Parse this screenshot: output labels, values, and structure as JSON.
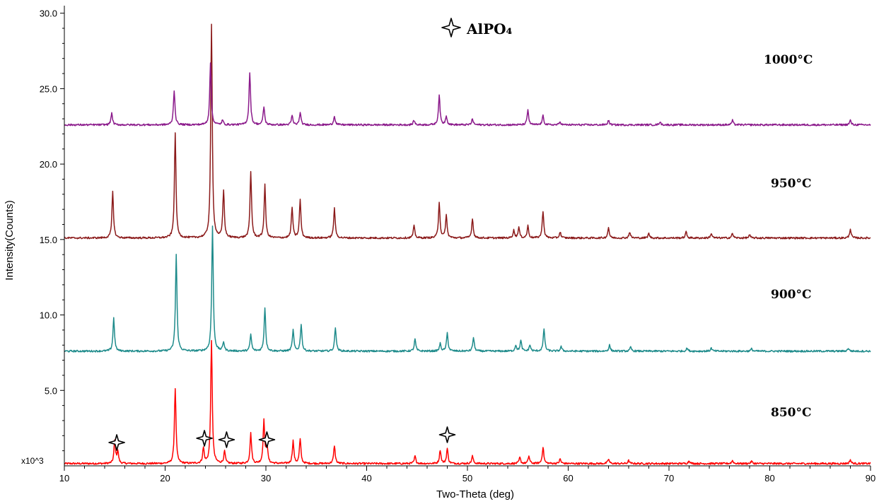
{
  "chart_data": {
    "type": "line",
    "xlabel": "Two-Theta (deg)",
    "ylabel": "Intensity(Counts)",
    "y_multiplier_label": "x10^3",
    "xlim": [
      10,
      90
    ],
    "ylim": [
      0,
      30.5
    ],
    "x_ticks": [
      "10",
      "20",
      "30",
      "40",
      "50",
      "60",
      "70",
      "80",
      "90"
    ],
    "y_ticks": [
      "5.0",
      "10.0",
      "15.0",
      "20.0",
      "25.0",
      "30.0"
    ],
    "legend": {
      "marker": "four-point-star",
      "label": "AlPO₄"
    },
    "series": [
      {
        "name": "850°C",
        "color": "#ff0000",
        "baseline": 0.15,
        "peaks": [
          [
            15.0,
            1.5
          ],
          [
            15.3,
            0.8
          ],
          [
            21.0,
            5.0
          ],
          [
            23.8,
            1.0
          ],
          [
            24.6,
            8.1
          ],
          [
            25.9,
            0.8
          ],
          [
            28.5,
            2.0
          ],
          [
            29.8,
            2.8
          ],
          [
            30.1,
            1.3
          ],
          [
            32.7,
            1.5
          ],
          [
            33.4,
            1.6
          ],
          [
            36.8,
            1.2
          ],
          [
            44.8,
            0.5
          ],
          [
            47.3,
            0.9
          ],
          [
            48.0,
            1.0
          ],
          [
            50.5,
            0.5
          ],
          [
            55.2,
            0.4
          ],
          [
            56.1,
            0.5
          ],
          [
            57.5,
            1.1
          ],
          [
            59.2,
            0.3
          ],
          [
            64.0,
            0.3
          ],
          [
            66.0,
            0.2
          ],
          [
            72.0,
            0.2
          ],
          [
            76.3,
            0.2
          ],
          [
            78.2,
            0.15
          ],
          [
            88.0,
            0.25
          ]
        ],
        "markers_x": [
          15.2,
          23.9,
          26.1,
          30.1,
          48.0
        ]
      },
      {
        "name": "900°C",
        "color": "#1e8b8b",
        "baseline": 7.6,
        "peaks": [
          [
            14.9,
            2.2
          ],
          [
            21.1,
            6.4
          ],
          [
            24.7,
            8.3
          ],
          [
            25.8,
            0.6
          ],
          [
            28.5,
            1.1
          ],
          [
            29.9,
            2.9
          ],
          [
            32.7,
            1.4
          ],
          [
            33.5,
            1.8
          ],
          [
            36.9,
            1.6
          ],
          [
            44.8,
            0.8
          ],
          [
            47.3,
            0.5
          ],
          [
            48.0,
            1.2
          ],
          [
            50.6,
            0.9
          ],
          [
            54.8,
            0.4
          ],
          [
            55.3,
            0.7
          ],
          [
            56.2,
            0.4
          ],
          [
            57.6,
            1.5
          ],
          [
            59.3,
            0.3
          ],
          [
            64.1,
            0.4
          ],
          [
            66.2,
            0.25
          ],
          [
            71.8,
            0.2
          ],
          [
            74.2,
            0.2
          ],
          [
            78.2,
            0.15
          ],
          [
            87.8,
            0.2
          ]
        ],
        "markers_x": []
      },
      {
        "name": "950°C",
        "color": "#8b1a1a",
        "baseline": 15.1,
        "peaks": [
          [
            14.8,
            3.1
          ],
          [
            21.0,
            6.9
          ],
          [
            24.6,
            14.1
          ],
          [
            25.8,
            3.1
          ],
          [
            28.5,
            4.4
          ],
          [
            29.9,
            3.5
          ],
          [
            32.6,
            2.0
          ],
          [
            33.4,
            2.5
          ],
          [
            36.8,
            2.0
          ],
          [
            44.7,
            0.8
          ],
          [
            47.2,
            2.4
          ],
          [
            47.9,
            1.5
          ],
          [
            50.5,
            1.3
          ],
          [
            54.6,
            0.5
          ],
          [
            55.1,
            0.7
          ],
          [
            56.0,
            0.8
          ],
          [
            57.5,
            1.8
          ],
          [
            59.2,
            0.4
          ],
          [
            64.0,
            0.7
          ],
          [
            66.1,
            0.4
          ],
          [
            68.0,
            0.3
          ],
          [
            71.7,
            0.4
          ],
          [
            74.2,
            0.3
          ],
          [
            76.3,
            0.3
          ],
          [
            78.0,
            0.2
          ],
          [
            88.0,
            0.6
          ]
        ],
        "markers_x": []
      },
      {
        "name": "1000°C",
        "color": "#8b1a8b",
        "baseline": 22.6,
        "peaks": [
          [
            14.7,
            0.8
          ],
          [
            20.9,
            2.3
          ],
          [
            24.5,
            4.1
          ],
          [
            25.7,
            0.3
          ],
          [
            28.4,
            3.5
          ],
          [
            29.8,
            1.2
          ],
          [
            32.6,
            0.6
          ],
          [
            33.4,
            0.8
          ],
          [
            36.8,
            0.6
          ],
          [
            44.7,
            0.3
          ],
          [
            47.2,
            2.0
          ],
          [
            47.9,
            0.6
          ],
          [
            50.5,
            0.4
          ],
          [
            56.0,
            1.0
          ],
          [
            57.5,
            0.6
          ],
          [
            59.2,
            0.2
          ],
          [
            64.0,
            0.3
          ],
          [
            69.1,
            0.2
          ],
          [
            76.3,
            0.3
          ],
          [
            88.0,
            0.3
          ]
        ],
        "markers_x": []
      }
    ]
  }
}
